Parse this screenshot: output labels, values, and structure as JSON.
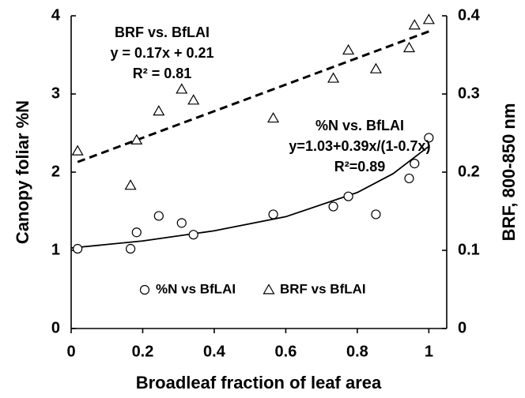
{
  "chart_data": {
    "type": "scatter",
    "x_label": "Broadleaf fraction of leaf area",
    "y_label": "Canopy foliar %N",
    "y2_label": "BRF, 800-850 nm",
    "xlim": [
      0,
      1.05
    ],
    "xticks": [
      0,
      0.2,
      0.4,
      0.6,
      0.8,
      1
    ],
    "ylim": [
      0,
      4
    ],
    "yticks": [
      0,
      1,
      2,
      3,
      4
    ],
    "y2lim": [
      0,
      0.4
    ],
    "y2ticks": [
      0,
      0.1,
      0.2,
      0.3,
      0.4
    ],
    "x": [
      0.018,
      0.166,
      0.183,
      0.245,
      0.309,
      0.342,
      0.565,
      0.733,
      0.775,
      0.852,
      0.945,
      0.96,
      1.0
    ],
    "series": [
      {
        "name": "%N vs BfLAI",
        "marker": "circle",
        "color": "#000000",
        "values": [
          1.02,
          1.02,
          1.23,
          1.44,
          1.35,
          1.2,
          1.46,
          1.56,
          1.69,
          1.46,
          1.92,
          2.11,
          2.44
        ]
      },
      {
        "name": "BRF vs BfLAI",
        "marker": "triangle",
        "color": "#000000",
        "axis": "y2",
        "values": [
          0.227,
          0.183,
          0.241,
          0.278,
          0.306,
          0.292,
          0.269,
          0.32,
          0.356,
          0.332,
          0.359,
          0.388,
          0.395
        ]
      }
    ],
    "trendlines": [
      {
        "axis": "y2",
        "style": "dashed",
        "x": [
          0.018,
          1.0
        ],
        "values": [
          0.213,
          0.38
        ]
      },
      {
        "style": "solid",
        "x": [
          0,
          0.2,
          0.4,
          0.6,
          0.8,
          0.9,
          1.0
        ],
        "values": [
          1.03,
          1.12,
          1.25,
          1.43,
          1.74,
          1.98,
          2.33
        ]
      }
    ],
    "annotations": [
      "BRF vs. BfLAI",
      "y = 0.17x + 0.21",
      "R² = 0.81",
      "%N vs. BfLAI",
      "y=1.03+0.39x/(1-0.7x)",
      "R²=0.89"
    ],
    "legend": "bottom"
  }
}
